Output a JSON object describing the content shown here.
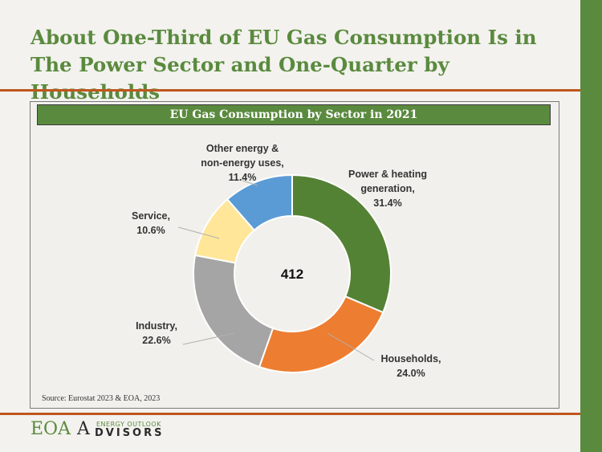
{
  "slide": {
    "title": "About One-Third of EU Gas Consumption Is in The Power Sector and One-Quarter by Households",
    "source": "Source: Eurostat 2023 & EOA, 2023"
  },
  "logo": {
    "eoa": "EOA",
    "a": "A",
    "top_text": "ENERGY OUTLOOK",
    "bottom_text": "DVISORS"
  },
  "chart_data": {
    "type": "pie",
    "title": "EU Gas Consumption by Sector in 2021",
    "center_label": "412",
    "slices": [
      {
        "label": [
          "Power & heating",
          "generation,",
          "31.4%"
        ],
        "value": 31.4,
        "color": "#548235"
      },
      {
        "label": [
          "Households,",
          "24.0%"
        ],
        "value": 24.0,
        "color": "#ed7d31"
      },
      {
        "label": [
          "Industry,",
          "22.6%"
        ],
        "value": 22.6,
        "color": "#a5a5a5"
      },
      {
        "label": [
          "Service,",
          "10.6%"
        ],
        "value": 10.6,
        "color": "#ffe699"
      },
      {
        "label": [
          "Other energy &",
          "non-energy uses,",
          "11.4%"
        ],
        "value": 11.4,
        "color": "#5b9bd5"
      }
    ]
  }
}
